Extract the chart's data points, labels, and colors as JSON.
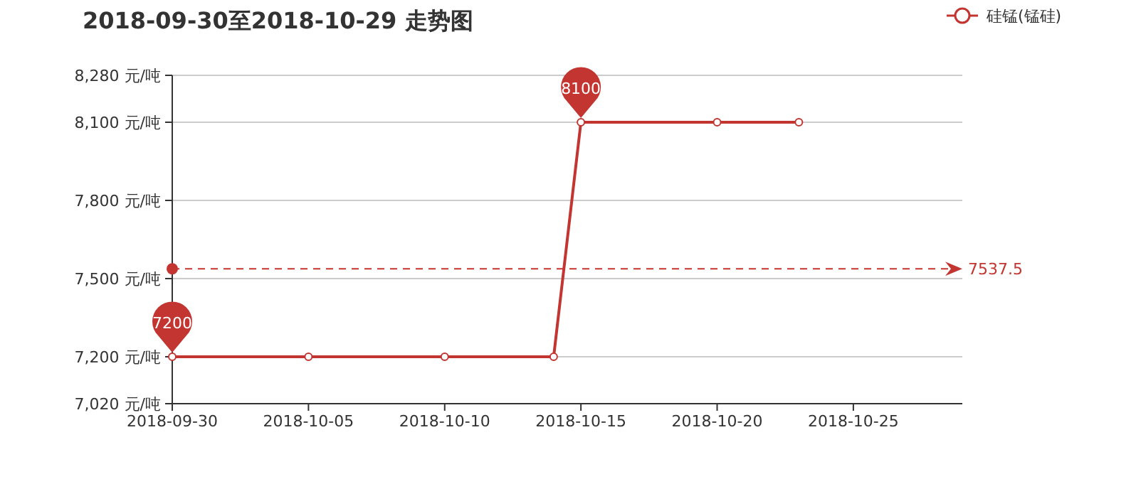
{
  "chart_data": {
    "type": "line",
    "title": "2018-09-30至2018-10-29 走势图",
    "x": [
      "2018-09-30",
      "2018-10-05",
      "2018-10-10",
      "2018-10-14",
      "2018-10-15",
      "2018-10-20",
      "2018-10-23"
    ],
    "series": [
      {
        "name": "硅锰(锰硅)",
        "color": "#c23531",
        "values": [
          7200,
          7200,
          7200,
          7200,
          8100,
          8100,
          8100
        ]
      }
    ],
    "xlim": [
      "2018-09-30",
      "2018-10-29"
    ],
    "xticks": [
      "2018-09-30",
      "2018-10-05",
      "2018-10-10",
      "2018-10-15",
      "2018-10-20",
      "2018-10-25"
    ],
    "ylim": [
      7020,
      8280
    ],
    "yticks": [
      {
        "value": 7020,
        "label": "7,020 元/吨"
      },
      {
        "value": 7200,
        "label": "7,200 元/吨"
      },
      {
        "value": 7500,
        "label": "7,500 元/吨"
      },
      {
        "value": 7800,
        "label": "7,800 元/吨"
      },
      {
        "value": 8100,
        "label": "8,100 元/吨"
      },
      {
        "value": 8280,
        "label": "8,280 元/吨"
      }
    ],
    "ref_lines": [
      {
        "axis": "y",
        "value": 7537.5,
        "label": "7537.5",
        "color": "#c23531",
        "line_style": "dashed"
      }
    ],
    "annotations": [
      {
        "text": "7200",
        "x": "2018-09-30",
        "y": 7200
      },
      {
        "text": "8100",
        "x": "2018-10-15",
        "y": 8100
      }
    ],
    "grid": "y",
    "legend": "top right",
    "marker": "circle",
    "line_style": "solid"
  }
}
